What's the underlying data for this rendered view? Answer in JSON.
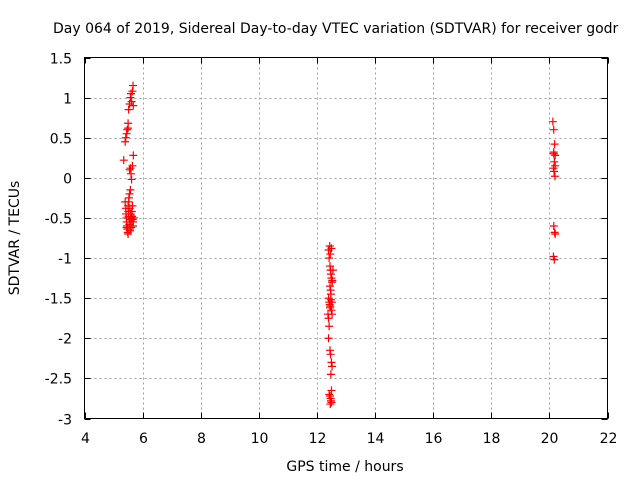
{
  "chart_data": {
    "type": "scatter",
    "title": "Day 064 of 2019, Sidereal Day-to-day VTEC variation (SDTVAR) for receiver godr",
    "xlabel": "GPS time / hours",
    "ylabel": "SDTVAR / TECUs",
    "xlim": [
      4,
      22
    ],
    "ylim": [
      -3,
      1.5
    ],
    "xticks": [
      4,
      6,
      8,
      10,
      12,
      14,
      16,
      18,
      20,
      22
    ],
    "yticks": [
      -3,
      -2.5,
      -2,
      -1.5,
      -1,
      -0.5,
      0,
      0.5,
      1,
      1.5
    ],
    "xtick_labels": [
      "4",
      "6",
      "8",
      "10",
      "12",
      "14",
      "16",
      "18",
      "20",
      "22"
    ],
    "ytick_labels": [
      "-3",
      "-2.5",
      "-2",
      "-1.5",
      "-1",
      "-0.5",
      "0",
      "0.5",
      "1",
      "1.5"
    ],
    "grid": true,
    "marker": "+",
    "color": "#ff0000",
    "series": [
      {
        "name": "SDTVAR",
        "points": [
          [
            5.35,
            0.22
          ],
          [
            5.4,
            0.45
          ],
          [
            5.42,
            0.5
          ],
          [
            5.45,
            0.55
          ],
          [
            5.47,
            0.6
          ],
          [
            5.5,
            0.62
          ],
          [
            5.5,
            0.68
          ],
          [
            5.52,
            0.85
          ],
          [
            5.55,
            0.92
          ],
          [
            5.58,
            1.0
          ],
          [
            5.6,
            1.05
          ],
          [
            5.62,
            0.95
          ],
          [
            5.65,
            1.08
          ],
          [
            5.67,
            1.15
          ],
          [
            5.68,
            0.9
          ],
          [
            5.55,
            0.1
          ],
          [
            5.6,
            0.05
          ],
          [
            5.62,
            -0.02
          ],
          [
            5.65,
            0.15
          ],
          [
            5.68,
            0.28
          ],
          [
            5.58,
            0.12
          ],
          [
            5.4,
            -0.3
          ],
          [
            5.42,
            -0.38
          ],
          [
            5.43,
            -0.45
          ],
          [
            5.44,
            -0.5
          ],
          [
            5.45,
            -0.55
          ],
          [
            5.46,
            -0.6
          ],
          [
            5.47,
            -0.62
          ],
          [
            5.48,
            -0.64
          ],
          [
            5.49,
            -0.68
          ],
          [
            5.5,
            -0.7
          ],
          [
            5.5,
            -0.35
          ],
          [
            5.51,
            -0.42
          ],
          [
            5.52,
            -0.48
          ],
          [
            5.53,
            -0.25
          ],
          [
            5.54,
            -0.58
          ],
          [
            5.55,
            -0.2
          ],
          [
            5.56,
            -0.52
          ],
          [
            5.57,
            -0.66
          ],
          [
            5.58,
            -0.15
          ],
          [
            5.59,
            -0.45
          ],
          [
            5.6,
            -0.55
          ],
          [
            5.61,
            -0.62
          ],
          [
            5.62,
            -0.5
          ],
          [
            5.63,
            -0.42
          ],
          [
            5.64,
            -0.48
          ],
          [
            5.65,
            -0.35
          ],
          [
            5.66,
            -0.52
          ],
          [
            5.67,
            -0.6
          ],
          [
            5.68,
            -0.55
          ],
          [
            5.7,
            -0.5
          ],
          [
            5.52,
            -0.3
          ],
          [
            5.56,
            -0.38
          ],
          [
            5.45,
            -0.62
          ],
          [
            12.4,
            -0.9
          ],
          [
            12.42,
            -1.0
          ],
          [
            12.44,
            -0.85
          ],
          [
            12.45,
            -1.1
          ],
          [
            12.46,
            -0.95
          ],
          [
            12.47,
            -1.15
          ],
          [
            12.48,
            -1.2
          ],
          [
            12.5,
            -1.25
          ],
          [
            12.5,
            -0.88
          ],
          [
            12.52,
            -1.3
          ],
          [
            12.45,
            -1.35
          ],
          [
            12.47,
            -1.4
          ],
          [
            12.4,
            -1.5
          ],
          [
            12.42,
            -1.55
          ],
          [
            12.44,
            -1.58
          ],
          [
            12.46,
            -1.6
          ],
          [
            12.48,
            -1.52
          ],
          [
            12.5,
            -1.65
          ],
          [
            12.52,
            -1.7
          ],
          [
            12.4,
            -1.75
          ],
          [
            12.42,
            -1.85
          ],
          [
            12.38,
            -1.7
          ],
          [
            12.45,
            -1.62
          ],
          [
            12.52,
            -1.55
          ],
          [
            12.48,
            -1.45
          ],
          [
            12.53,
            -1.28
          ],
          [
            12.55,
            -1.15
          ],
          [
            12.4,
            -2.0
          ],
          [
            12.45,
            -2.15
          ],
          [
            12.47,
            -2.2
          ],
          [
            12.5,
            -2.3
          ],
          [
            12.52,
            -2.35
          ],
          [
            12.48,
            -2.45
          ],
          [
            12.42,
            -2.7
          ],
          [
            12.45,
            -2.72
          ],
          [
            12.47,
            -2.75
          ],
          [
            12.48,
            -2.78
          ],
          [
            12.5,
            -2.8
          ],
          [
            12.46,
            -2.82
          ],
          [
            12.5,
            -2.65
          ],
          [
            20.12,
            0.7
          ],
          [
            20.15,
            0.6
          ],
          [
            20.18,
            0.42
          ],
          [
            20.15,
            0.32
          ],
          [
            20.2,
            0.28
          ],
          [
            20.17,
            0.2
          ],
          [
            20.14,
            0.12
          ],
          [
            20.16,
            0.08
          ],
          [
            20.19,
            0.02
          ],
          [
            20.15,
            0.3
          ],
          [
            20.2,
            0.15
          ],
          [
            20.15,
            -0.6
          ],
          [
            20.18,
            -0.68
          ],
          [
            20.2,
            -0.7
          ],
          [
            20.14,
            -0.98
          ],
          [
            20.17,
            -1.02
          ]
        ]
      }
    ]
  }
}
